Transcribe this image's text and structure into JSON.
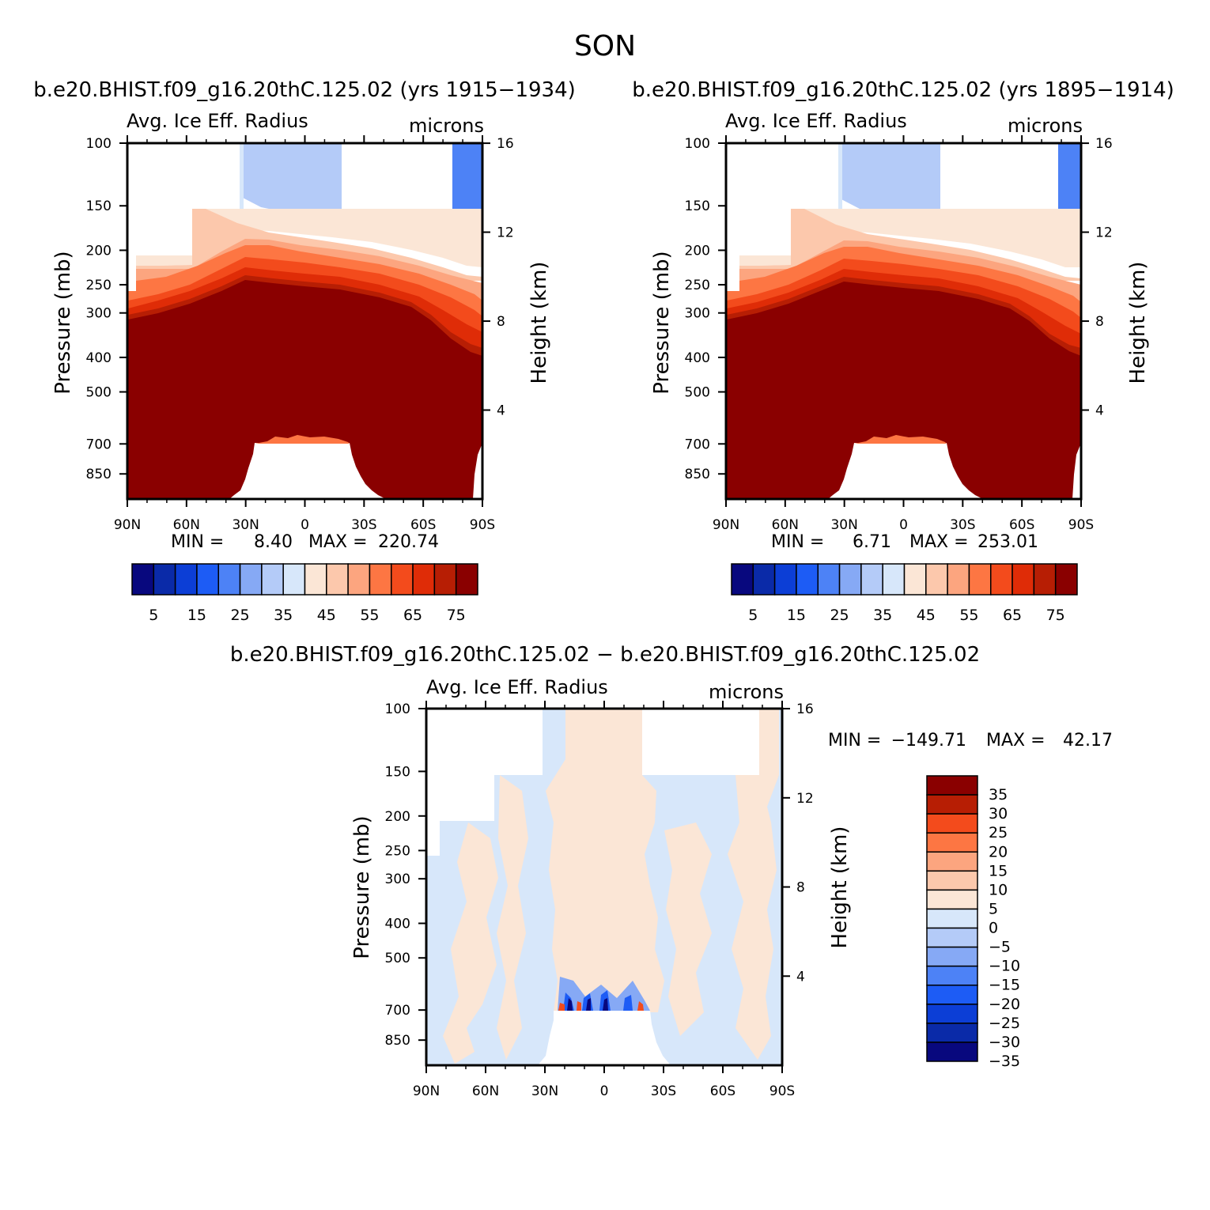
{
  "figure": {
    "season": "SON",
    "panel_titles": [
      "b.e20.BHIST.f09_g16.20thC.125.02 (yrs 1915−1934)",
      "b.e20.BHIST.f09_g16.20thC.125.02 (yrs 1895−1914)"
    ],
    "diff_title": "b.e20.BHIST.f09_g16.20thC.125.02 − b.e20.BHIST.f09_g16.20thC.125.02"
  },
  "chart_data": [
    {
      "type": "heatmap",
      "title": "Avg. Ice Eff. Radius",
      "units": "microns",
      "ylabel": "Pressure (mb)",
      "ylabel_right": "Height (km)",
      "xticks": [
        "90N",
        "60N",
        "30N",
        "0",
        "30S",
        "60S",
        "90S"
      ],
      "yticks": [
        100,
        150,
        200,
        250,
        300,
        400,
        500,
        700,
        850
      ],
      "yticks_right": [
        16,
        12,
        8,
        4
      ],
      "ylim": [
        100,
        1000
      ],
      "stats": {
        "min_label": "MIN =",
        "min": "8.40",
        "max_label": "MAX =",
        "max": "220.74"
      },
      "colorbar_levels": [
        5,
        10,
        15,
        20,
        25,
        30,
        35,
        40,
        45,
        50,
        55,
        60,
        65,
        70,
        75
      ],
      "colorbar_labels": [
        "5",
        "15",
        "25",
        "35",
        "45",
        "55",
        "65",
        "75"
      ]
    },
    {
      "type": "heatmap",
      "title": "Avg. Ice Eff. Radius",
      "units": "microns",
      "ylabel": "Pressure (mb)",
      "ylabel_right": "Height (km)",
      "xticks": [
        "90N",
        "60N",
        "30N",
        "0",
        "30S",
        "60S",
        "90S"
      ],
      "yticks": [
        100,
        150,
        200,
        250,
        300,
        400,
        500,
        700,
        850
      ],
      "yticks_right": [
        16,
        12,
        8,
        4
      ],
      "ylim": [
        100,
        1000
      ],
      "stats": {
        "min_label": "MIN =",
        "min": "6.71",
        "max_label": "MAX =",
        "max": "253.01"
      },
      "colorbar_levels": [
        5,
        10,
        15,
        20,
        25,
        30,
        35,
        40,
        45,
        50,
        55,
        60,
        65,
        70,
        75
      ],
      "colorbar_labels": [
        "5",
        "15",
        "25",
        "35",
        "45",
        "55",
        "65",
        "75"
      ]
    },
    {
      "type": "heatmap",
      "title": "Avg. Ice Eff. Radius",
      "units": "microns",
      "ylabel": "Pressure (mb)",
      "ylabel_right": "Height (km)",
      "xticks": [
        "90N",
        "60N",
        "30N",
        "0",
        "30S",
        "60S",
        "90S"
      ],
      "yticks": [
        100,
        150,
        200,
        250,
        300,
        400,
        500,
        700,
        850
      ],
      "yticks_right": [
        16,
        12,
        8,
        4
      ],
      "ylim": [
        100,
        1000
      ],
      "stats": {
        "min_label": "MIN =",
        "min": "−149.71",
        "max_label": "MAX =",
        "max": "42.17"
      },
      "colorbar_levels": [
        35,
        30,
        25,
        20,
        15,
        10,
        5,
        0,
        -5,
        -10,
        -15,
        -20,
        -25,
        -30,
        -35
      ],
      "colorbar_labels": [
        "35",
        "30",
        "25",
        "20",
        "15",
        "10",
        "5",
        "0",
        "−5",
        "−10",
        "−15",
        "−20",
        "−25",
        "−30",
        "−35"
      ]
    }
  ],
  "colors": {
    "seq": [
      "#08087e",
      "#0a2aa8",
      "#0c3ed6",
      "#1d5cf5",
      "#4d82f6",
      "#86a9f5",
      "#b4cbf8",
      "#d7e7fa",
      "#fbe6d6",
      "#fcc8ac",
      "#fca57f",
      "#fd7643",
      "#f34b1c",
      "#df2c07",
      "#b71e04",
      "#8a0000"
    ],
    "diff": [
      "#8a0000",
      "#b71e04",
      "#f34b1c",
      "#fd7643",
      "#fca57f",
      "#fcc8ac",
      "#fbe6d6",
      "#d7e7fa",
      "#b4cbf8",
      "#86a9f5",
      "#4d82f6",
      "#1d5cf5",
      "#0c3ed6",
      "#0a2aa8",
      "#08087e"
    ]
  }
}
